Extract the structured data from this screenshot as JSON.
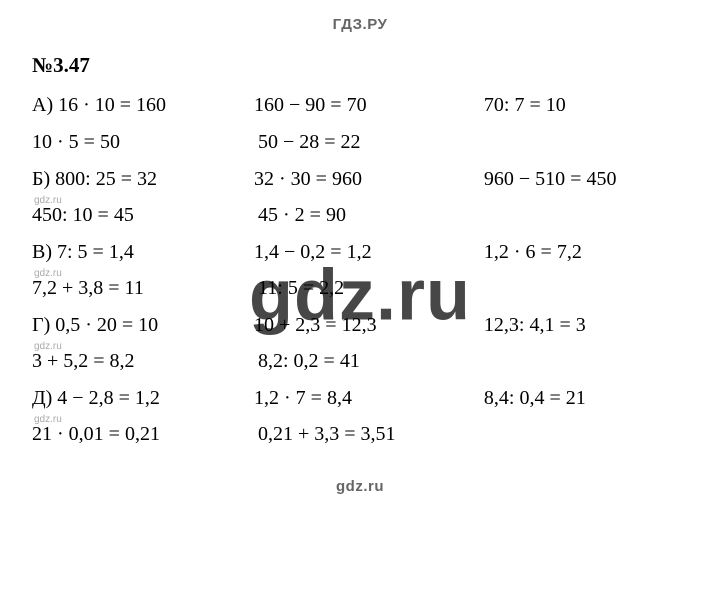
{
  "header": "ГДЗ.РУ",
  "footer": "gdz.ru",
  "watermark_small": "gdz.ru",
  "watermark_big": "gdz.ru",
  "problem_title": "№3.47",
  "rows": [
    {
      "type": "eq3",
      "c1": "А) 16 · 10 = 160",
      "c2": "160 − 90 = 70",
      "c3": "70: 7 = 10"
    },
    {
      "type": "eq2",
      "c1": "10 · 5 = 50",
      "c2": "50 − 28 = 22"
    },
    {
      "type": "eq3",
      "c1": "Б) 800: 25 = 32",
      "c2": "32 · 30 = 960",
      "c3": "960 − 510 = 450"
    },
    {
      "type": "wm"
    },
    {
      "type": "eq2",
      "c1": "450: 10 = 45",
      "c2": "45 · 2 = 90"
    },
    {
      "type": "eq3",
      "c1": "В) 7: 5 = 1,4",
      "c2": "1,4 − 0,2 = 1,2",
      "c3": "1,2 · 6 = 7,2"
    },
    {
      "type": "wm"
    },
    {
      "type": "eq2",
      "c1": "7,2 + 3,8 = 11",
      "c2": "11: 5 = 2,2"
    },
    {
      "type": "eq3",
      "c1": "Г) 0,5 · 20 = 10",
      "c2": "10 + 2,3 = 12,3",
      "c3": "12,3: 4,1 = 3"
    },
    {
      "type": "wm"
    },
    {
      "type": "eq2",
      "c1": "3 + 5,2 = 8,2",
      "c2": "8,2: 0,2 = 41"
    },
    {
      "type": "eq3",
      "c1": "Д) 4 − 2,8 = 1,2",
      "c2": "1,2 · 7 = 8,4",
      "c3": "8,4: 0,4 = 21"
    },
    {
      "type": "wm"
    },
    {
      "type": "eq2",
      "c1": "21 · 0,01 = 0,21",
      "c2": "0,21 + 3,3 = 3,51"
    }
  ]
}
